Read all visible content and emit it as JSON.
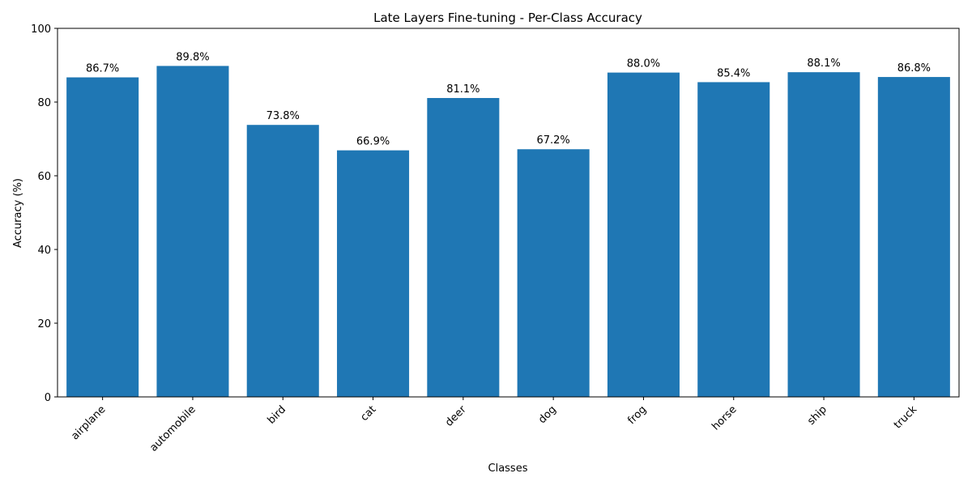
{
  "chart_data": {
    "type": "bar",
    "title": "Late Layers Fine-tuning - Per-Class Accuracy",
    "xlabel": "Classes",
    "ylabel": "Accuracy (%)",
    "categories": [
      "airplane",
      "automobile",
      "bird",
      "cat",
      "deer",
      "dog",
      "frog",
      "horse",
      "ship",
      "truck"
    ],
    "values": [
      86.7,
      89.8,
      73.8,
      66.9,
      81.1,
      67.2,
      88.0,
      85.4,
      88.1,
      86.8
    ],
    "data_labels": [
      "86.7%",
      "89.8%",
      "73.8%",
      "66.9%",
      "81.1%",
      "67.2%",
      "88.0%",
      "85.4%",
      "88.1%",
      "86.8%"
    ],
    "ylim": [
      0,
      100
    ],
    "yticks": [
      0,
      20,
      40,
      60,
      80,
      100
    ],
    "ytick_labels": [
      "0",
      "20",
      "40",
      "60",
      "80",
      "100"
    ],
    "grid": false,
    "legend": "none",
    "bar_color": "#1f77b4"
  }
}
